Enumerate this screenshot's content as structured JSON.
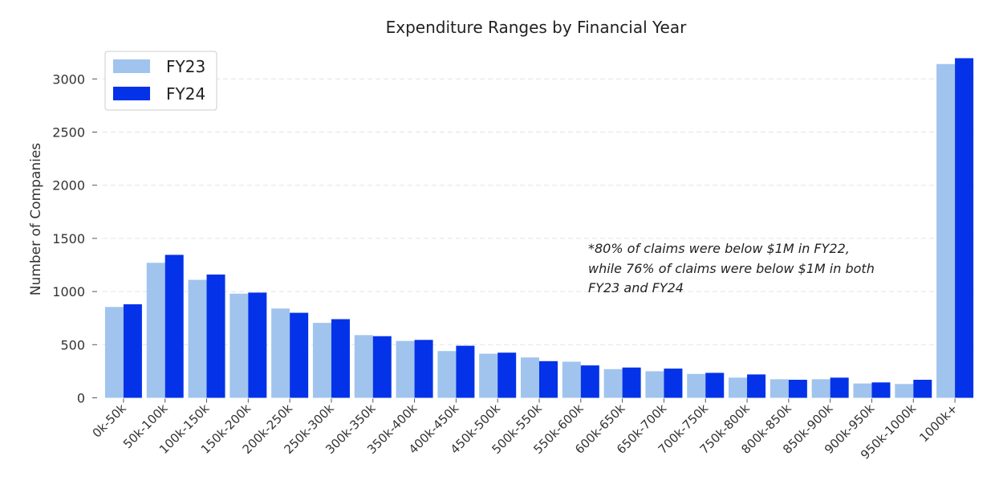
{
  "chart_data": {
    "type": "bar",
    "title": "Expenditure Ranges by Financial Year",
    "xlabel": "",
    "ylabel": "Number of Companies",
    "ylim": [
      0,
      3250
    ],
    "yticks": [
      0,
      500,
      1000,
      1500,
      2000,
      2500,
      3000
    ],
    "grid": true,
    "legend_position": "top-left",
    "categories": [
      "0k-50k",
      "50k-100k",
      "100k-150k",
      "150k-200k",
      "200k-250k",
      "250k-300k",
      "300k-350k",
      "350k-400k",
      "400k-450k",
      "450k-500k",
      "500k-550k",
      "550k-600k",
      "600k-650k",
      "650k-700k",
      "700k-750k",
      "750k-800k",
      "800k-850k",
      "850k-900k",
      "900k-950k",
      "950k-1000k",
      "1000k+"
    ],
    "series": [
      {
        "name": "FY23",
        "color": "#a0c4ed",
        "values": [
          855,
          1270,
          1110,
          980,
          840,
          705,
          590,
          535,
          440,
          415,
          380,
          340,
          270,
          250,
          225,
          190,
          175,
          175,
          135,
          130,
          3140
        ]
      },
      {
        "name": "FY24",
        "color": "#0432e8",
        "values": [
          880,
          1345,
          1160,
          990,
          800,
          740,
          580,
          545,
          490,
          425,
          345,
          305,
          285,
          275,
          235,
          220,
          170,
          190,
          145,
          170,
          3195
        ]
      }
    ],
    "annotation": [
      "*80% of claims were below $1M in FY22,",
      "while 76% of claims were below $1M in both",
      "FY23 and FY24"
    ]
  }
}
